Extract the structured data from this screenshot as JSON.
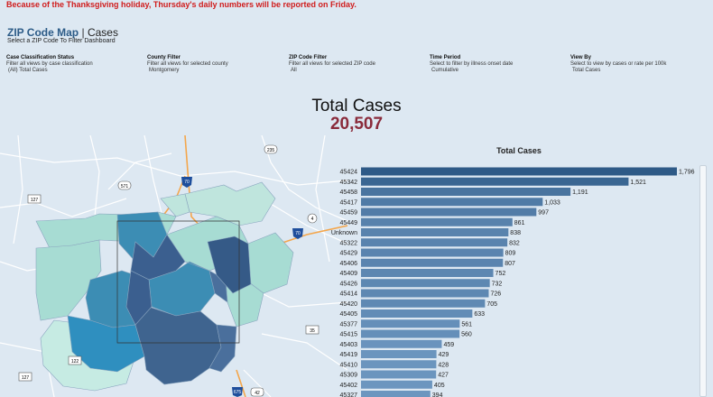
{
  "notice": "Because of the Thanksgiving holiday, Thursday's daily numbers will be reported on Friday.",
  "header": {
    "title_bold": "ZIP Code Map",
    "title_sep": "|",
    "title_plain": "Cases",
    "subtitle": "Select a ZIP Code To Filter Dashboard"
  },
  "filters": [
    {
      "title": "Case Classification Status",
      "desc": "Filter all views by case classification",
      "value": "(All) Total Cases"
    },
    {
      "title": "County Filter",
      "desc": "Filter all views for selected county",
      "value": "Montgomery"
    },
    {
      "title": "ZIP Code Filter",
      "desc": "Filter all views for selected ZIP code",
      "value": "All"
    },
    {
      "title": "Time Period",
      "desc": "Select to filter by illness onset date",
      "value": "Cumulative"
    },
    {
      "title": "View By",
      "desc": "Select to view by cases or rate per 100k",
      "value": "Total Cases"
    }
  ],
  "total": {
    "label": "Total Cases",
    "value": "20,507"
  },
  "map": {
    "shields": [
      "235",
      "571",
      "70",
      "127",
      "4",
      "70",
      "35",
      "122",
      "127",
      "42",
      "675"
    ]
  },
  "colors": {
    "dark": "#2e5a87",
    "mid": "#4a7bae",
    "light": "#7ea7cf"
  },
  "chart_data": {
    "type": "bar",
    "orientation": "horizontal",
    "title": "Total Cases",
    "categories": [
      "45424",
      "45342",
      "45458",
      "45417",
      "45459",
      "45449",
      "Unknown",
      "45322",
      "45429",
      "45406",
      "45409",
      "45426",
      "45414",
      "45420",
      "45405",
      "45377",
      "45415",
      "45403",
      "45419",
      "45410",
      "45309",
      "45402",
      "45327"
    ],
    "values": [
      1796,
      1521,
      1191,
      1033,
      997,
      861,
      838,
      832,
      809,
      807,
      752,
      732,
      726,
      705,
      633,
      561,
      560,
      459,
      429,
      428,
      427,
      405,
      394
    ],
    "labels": [
      "1,796",
      "1,521",
      "1,191",
      "1,033",
      "997",
      "861",
      "838",
      "832",
      "809",
      "807",
      "752",
      "732",
      "726",
      "705",
      "633",
      "561",
      "560",
      "459",
      "429",
      "428",
      "427",
      "405",
      "394"
    ]
  }
}
